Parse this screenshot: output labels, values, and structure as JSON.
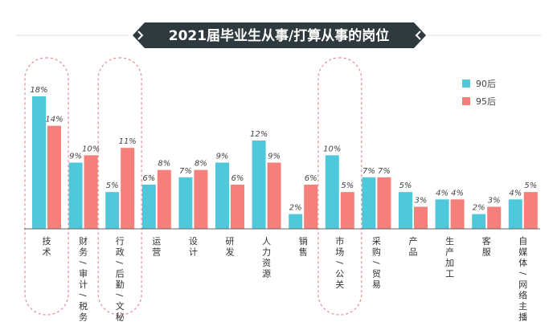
{
  "chart_data": {
    "type": "bar",
    "title": "2021届毕业生从事/打算从事的岗位",
    "categories": [
      "技术",
      "财务/审计/税务",
      "行政/后勤/文秘",
      "运营",
      "设计",
      "研发",
      "人力资源",
      "销售",
      "市场/公关",
      "采购/贸易",
      "产品",
      "生产加工",
      "客服",
      "自媒体/网络主播"
    ],
    "series": [
      {
        "name": "90后",
        "values": [
          18,
          9,
          5,
          6,
          7,
          9,
          12,
          2,
          10,
          7,
          5,
          4,
          2,
          4
        ],
        "labels": [
          "18%",
          "9%",
          "5%",
          "6%",
          "7%",
          "9%",
          "12%",
          "2%",
          "10%",
          "7%",
          "5%",
          "4%",
          "2%",
          "4%"
        ]
      },
      {
        "name": "95后",
        "values": [
          14,
          10,
          11,
          8,
          8,
          6,
          9,
          6,
          5,
          7,
          3,
          4,
          3,
          5
        ],
        "labels": [
          "14%",
          "10%",
          "11%",
          "8%",
          "8%",
          "6%",
          "9%",
          "6%",
          "5%",
          "7%",
          "3%",
          "4%",
          "3%",
          "5%"
        ]
      }
    ],
    "colors": {
      "90后": "#4fc8dc",
      "95后": "#f47f7b",
      "title_bg": "#2f3a3f",
      "highlight": "#e7959a"
    },
    "highlighted_categories": [
      "技术",
      "行政/后勤/文秘",
      "市场/公关"
    ],
    "legend_position": "top-right",
    "grid": false,
    "ylim": [
      0,
      20
    ]
  }
}
